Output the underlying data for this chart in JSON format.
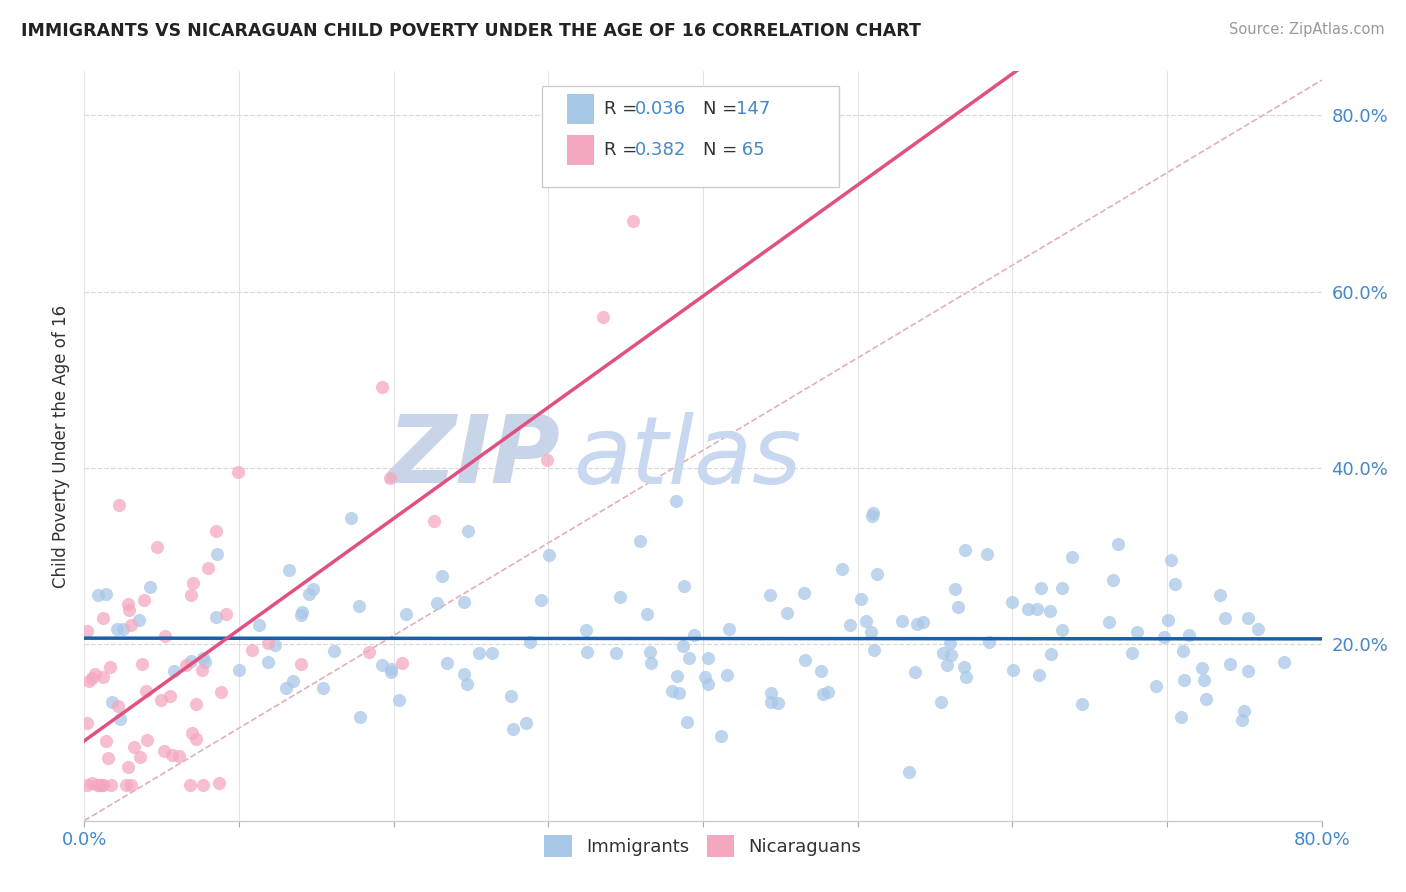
{
  "title": "IMMIGRANTS VS NICARAGUAN CHILD POVERTY UNDER THE AGE OF 16 CORRELATION CHART",
  "source": "Source: ZipAtlas.com",
  "ylabel": "Child Poverty Under the Age of 16",
  "legend_R1": "0.036",
  "legend_N1": "147",
  "legend_R2": "0.382",
  "legend_N2": "65",
  "blue_scatter_color": "#a8c8e8",
  "pink_scatter_color": "#f4a8c0",
  "blue_line_color": "#1a5fa8",
  "pink_line_color": "#e05080",
  "diag_line_color": "#e0b0b8",
  "grid_color": "#d8d8d8",
  "ytick_color": "#4488cc",
  "xtick_color": "#4488cc",
  "watermark_zip_color": "#c8d4e8",
  "watermark_atlas_color": "#c8d8f0",
  "xlim": [
    0.0,
    0.8
  ],
  "ylim": [
    0.0,
    0.85
  ],
  "yticks": [
    0.2,
    0.4,
    0.6,
    0.8
  ],
  "ytick_labels": [
    "20.0%",
    "40.0%",
    "60.0%",
    "80.0%"
  ],
  "seed": 12345
}
